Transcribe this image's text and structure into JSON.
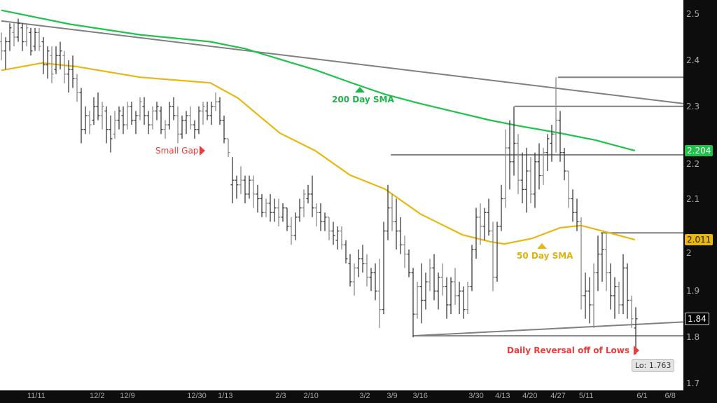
{
  "chart_data": {
    "type": "ohlc",
    "title": "",
    "xlabel": "",
    "ylabel": "",
    "ylim": [
      1.7,
      2.5
    ],
    "grid": false,
    "y_ticks": [
      "2.5",
      "2.4",
      "2.3",
      "2.2",
      "2.1",
      "2",
      "1.9",
      "1.8",
      "1.7"
    ],
    "y_tick_values": [
      2.5,
      2.4,
      2.3,
      2.2,
      2.1,
      2.0,
      1.9,
      1.8,
      1.7
    ],
    "x_ticks": [
      {
        "label": "11/11",
        "bar": 8.3
      },
      {
        "label": "12/2",
        "bar": 22.8
      },
      {
        "label": "12/9",
        "bar": 30
      },
      {
        "label": "12/30",
        "bar": 46.5
      },
      {
        "label": "1/13",
        "bar": 53.3
      },
      {
        "label": "2/3",
        "bar": 66.5
      },
      {
        "label": "2/10",
        "bar": 73.7
      },
      {
        "label": "3/2",
        "bar": 86.5
      },
      {
        "label": "3/9",
        "bar": 93
      },
      {
        "label": "3/16",
        "bar": 99.7
      },
      {
        "label": "3/30",
        "bar": 113
      },
      {
        "label": "4/13",
        "bar": 119.3
      },
      {
        "label": "4/20",
        "bar": 125.8
      },
      {
        "label": "4/27",
        "bar": 132.5
      },
      {
        "label": "5/11",
        "bar": 139.2
      },
      {
        "label": "6/1",
        "bar": 152.5
      },
      {
        "label": "6/8",
        "bar": 159.2
      }
    ],
    "ohlc": [
      [
        2.44,
        2.46,
        2.4,
        2.42
      ],
      [
        2.42,
        2.45,
        2.38,
        2.44
      ],
      [
        2.44,
        2.48,
        2.42,
        2.47
      ],
      [
        2.46,
        2.48,
        2.43,
        2.45
      ],
      [
        2.45,
        2.49,
        2.44,
        2.48
      ],
      [
        2.47,
        2.48,
        2.42,
        2.44
      ],
      [
        2.44,
        2.48,
        2.43,
        2.47
      ],
      [
        2.46,
        2.47,
        2.41,
        2.42
      ],
      [
        2.43,
        2.47,
        2.42,
        2.46
      ],
      [
        2.46,
        2.47,
        2.42,
        2.43
      ],
      [
        2.44,
        2.45,
        2.37,
        2.39
      ],
      [
        2.39,
        2.43,
        2.36,
        2.42
      ],
      [
        2.41,
        2.43,
        2.35,
        2.37
      ],
      [
        2.38,
        2.43,
        2.37,
        2.41
      ],
      [
        2.41,
        2.44,
        2.38,
        2.42
      ],
      [
        2.41,
        2.42,
        2.35,
        2.37
      ],
      [
        2.37,
        2.4,
        2.33,
        2.38
      ],
      [
        2.38,
        2.41,
        2.34,
        2.36
      ],
      [
        2.36,
        2.37,
        2.31,
        2.33
      ],
      [
        2.33,
        2.34,
        2.22,
        2.25
      ],
      [
        2.25,
        2.3,
        2.24,
        2.28
      ],
      [
        2.28,
        2.29,
        2.24,
        2.26
      ],
      [
        2.27,
        2.32,
        2.26,
        2.3
      ],
      [
        2.3,
        2.33,
        2.27,
        2.28
      ],
      [
        2.28,
        2.31,
        2.25,
        2.3
      ],
      [
        2.29,
        2.3,
        2.22,
        2.25
      ],
      [
        2.25,
        2.28,
        2.2,
        2.23
      ],
      [
        2.24,
        2.29,
        2.23,
        2.27
      ],
      [
        2.27,
        2.3,
        2.25,
        2.29
      ],
      [
        2.28,
        2.3,
        2.24,
        2.26
      ],
      [
        2.26,
        2.31,
        2.25,
        2.3
      ],
      [
        2.3,
        2.31,
        2.26,
        2.27
      ],
      [
        2.27,
        2.29,
        2.24,
        2.28
      ],
      [
        2.28,
        2.32,
        2.27,
        2.31
      ],
      [
        2.3,
        2.32,
        2.26,
        2.28
      ],
      [
        2.28,
        2.29,
        2.24,
        2.26
      ],
      [
        2.26,
        2.3,
        2.25,
        2.29
      ],
      [
        2.29,
        2.31,
        2.27,
        2.3
      ],
      [
        2.29,
        2.3,
        2.24,
        2.25
      ],
      [
        2.25,
        2.27,
        2.23,
        2.26
      ],
      [
        2.26,
        2.31,
        2.25,
        2.3
      ],
      [
        2.3,
        2.32,
        2.27,
        2.28
      ],
      [
        2.28,
        2.3,
        2.22,
        2.24
      ],
      [
        2.24,
        2.28,
        2.23,
        2.27
      ],
      [
        2.27,
        2.29,
        2.24,
        2.28
      ],
      [
        2.28,
        2.3,
        2.25,
        2.26
      ],
      [
        2.26,
        2.27,
        2.23,
        2.25
      ],
      [
        2.25,
        2.3,
        2.24,
        2.29
      ],
      [
        2.29,
        2.31,
        2.26,
        2.3
      ],
      [
        2.29,
        2.31,
        2.27,
        2.28
      ],
      [
        2.28,
        2.31,
        2.26,
        2.3
      ],
      [
        2.3,
        2.33,
        2.29,
        2.31
      ],
      [
        2.31,
        2.32,
        2.26,
        2.27
      ],
      [
        2.27,
        2.28,
        2.22,
        2.23
      ],
      [
        2.23,
        2.23,
        2.19,
        2.2
      ],
      [
        2.13,
        2.19,
        2.09,
        2.14
      ],
      [
        2.14,
        2.15,
        2.1,
        2.13
      ],
      [
        2.13,
        2.17,
        2.11,
        2.14
      ],
      [
        2.14,
        2.15,
        2.09,
        2.11
      ],
      [
        2.11,
        2.15,
        2.1,
        2.14
      ],
      [
        2.14,
        2.15,
        2.08,
        2.11
      ],
      [
        2.11,
        2.13,
        2.07,
        2.1
      ],
      [
        2.1,
        2.11,
        2.06,
        2.07
      ],
      [
        2.07,
        2.1,
        2.06,
        2.09
      ],
      [
        2.09,
        2.11,
        2.05,
        2.07
      ],
      [
        2.07,
        2.1,
        2.05,
        2.08
      ],
      [
        2.08,
        2.1,
        2.04,
        2.06
      ],
      [
        2.06,
        2.09,
        2.05,
        2.08
      ],
      [
        2.08,
        2.08,
        2.03,
        2.04
      ],
      [
        2.04,
        2.06,
        2.0,
        2.02
      ],
      [
        2.02,
        2.07,
        2.01,
        2.06
      ],
      [
        2.06,
        2.1,
        2.05,
        2.08
      ],
      [
        2.08,
        2.12,
        2.06,
        2.11
      ],
      [
        2.1,
        2.13,
        2.09,
        2.11
      ],
      [
        2.11,
        2.15,
        2.06,
        2.08
      ],
      [
        2.08,
        2.09,
        2.04,
        2.07
      ],
      [
        2.07,
        2.09,
        2.03,
        2.05
      ],
      [
        2.05,
        2.07,
        2.03,
        2.06
      ],
      [
        2.06,
        2.06,
        2.01,
        2.03
      ],
      [
        2.03,
        2.05,
        2.0,
        2.02
      ],
      [
        2.01,
        2.04,
        1.99,
        2.03
      ],
      [
        2.03,
        2.04,
        1.99,
        2.0
      ],
      [
        2.0,
        2.01,
        1.96,
        1.97
      ],
      [
        1.96,
        1.98,
        1.91,
        1.92
      ],
      [
        1.92,
        1.96,
        1.89,
        1.95
      ],
      [
        1.95,
        1.99,
        1.93,
        1.97
      ],
      [
        1.97,
        2.0,
        1.94,
        1.96
      ],
      [
        1.96,
        1.98,
        1.91,
        1.93
      ],
      [
        1.93,
        1.95,
        1.9,
        1.94
      ],
      [
        1.94,
        1.96,
        1.88,
        1.9
      ],
      [
        1.9,
        1.97,
        1.82,
        1.86
      ],
      [
        1.86,
        2.05,
        1.85,
        2.03
      ],
      [
        2.03,
        2.13,
        2.01,
        2.08
      ],
      [
        2.08,
        2.11,
        2.03,
        2.05
      ],
      [
        2.05,
        2.1,
        1.99,
        2.03
      ],
      [
        2.03,
        2.06,
        1.98,
        2.0
      ],
      [
        2.0,
        2.02,
        1.95,
        1.98
      ],
      [
        1.98,
        1.99,
        1.93,
        1.94
      ],
      [
        1.94,
        1.95,
        1.8,
        1.85
      ],
      [
        1.85,
        1.92,
        1.84,
        1.91
      ],
      [
        1.91,
        1.96,
        1.83,
        1.88
      ],
      [
        1.88,
        1.94,
        1.86,
        1.92
      ],
      [
        1.92,
        1.97,
        1.9,
        1.95
      ],
      [
        1.95,
        1.98,
        1.88,
        1.9
      ],
      [
        1.9,
        1.94,
        1.86,
        1.93
      ],
      [
        1.93,
        1.96,
        1.89,
        1.91
      ],
      [
        1.91,
        1.93,
        1.84,
        1.87
      ],
      [
        1.87,
        1.93,
        1.85,
        1.92
      ],
      [
        1.92,
        1.95,
        1.87,
        1.89
      ],
      [
        1.89,
        1.92,
        1.85,
        1.9
      ],
      [
        1.9,
        1.91,
        1.84,
        1.86
      ],
      [
        1.86,
        1.92,
        1.85,
        1.91
      ],
      [
        1.91,
        2.0,
        1.9,
        1.99
      ],
      [
        1.99,
        2.08,
        1.97,
        2.06
      ],
      [
        2.06,
        2.09,
        2.0,
        2.04
      ],
      [
        2.04,
        2.08,
        2.01,
        2.07
      ],
      [
        2.07,
        2.1,
        2.02,
        2.03
      ],
      [
        2.03,
        2.05,
        1.9,
        1.93
      ],
      [
        1.93,
        2.05,
        1.92,
        2.04
      ],
      [
        2.04,
        2.13,
        2.03,
        2.1
      ],
      [
        2.1,
        2.25,
        2.08,
        2.21
      ],
      [
        2.21,
        2.27,
        2.12,
        2.18
      ],
      [
        2.18,
        2.3,
        2.15,
        2.22
      ],
      [
        2.22,
        2.24,
        2.11,
        2.14
      ],
      [
        2.14,
        2.2,
        2.09,
        2.12
      ],
      [
        2.12,
        2.21,
        2.07,
        2.16
      ],
      [
        2.16,
        2.19,
        2.09,
        2.11
      ],
      [
        2.11,
        2.2,
        2.08,
        2.18
      ],
      [
        2.18,
        2.22,
        2.12,
        2.15
      ],
      [
        2.15,
        2.21,
        2.13,
        2.2
      ],
      [
        2.2,
        2.24,
        2.16,
        2.23
      ],
      [
        2.22,
        2.26,
        2.18,
        2.24
      ],
      [
        2.24,
        2.363,
        2.2,
        2.27
      ],
      [
        2.27,
        2.29,
        2.18,
        2.2
      ],
      [
        2.2,
        2.21,
        2.14,
        2.16
      ],
      [
        2.16,
        2.16,
        2.08,
        2.1
      ],
      [
        2.1,
        2.12,
        2.05,
        2.07
      ],
      [
        2.07,
        2.1,
        2.03,
        2.05
      ],
      [
        2.05,
        2.06,
        1.86,
        1.89
      ],
      [
        1.89,
        1.94,
        1.84,
        1.9
      ],
      [
        1.9,
        1.93,
        1.83,
        1.87
      ],
      [
        1.87,
        1.96,
        1.82,
        1.94
      ],
      [
        1.94,
        2.02,
        1.9,
        1.98
      ],
      [
        1.98,
        2.026,
        1.92,
        1.99
      ],
      [
        1.99,
        2.026,
        1.9,
        1.94
      ],
      [
        1.94,
        1.96,
        1.86,
        1.89
      ],
      [
        1.89,
        1.93,
        1.84,
        1.91
      ],
      [
        1.91,
        1.92,
        1.85,
        1.87
      ],
      [
        1.87,
        1.98,
        1.85,
        1.95
      ],
      [
        1.95,
        1.96,
        1.84,
        1.88
      ],
      [
        1.88,
        1.89,
        1.82,
        1.84
      ],
      [
        1.82,
        1.865,
        1.763,
        1.84
      ]
    ],
    "sma200": {
      "name": "200 Day SMA",
      "color": "#1fc24a",
      "points": [
        [
          0,
          2.508
        ],
        [
          16.3,
          2.478
        ],
        [
          33,
          2.455
        ],
        [
          49.7,
          2.44
        ],
        [
          58,
          2.425
        ],
        [
          66.3,
          2.402
        ],
        [
          74.7,
          2.379
        ],
        [
          83,
          2.352
        ],
        [
          91.3,
          2.326
        ],
        [
          99.7,
          2.306
        ],
        [
          108,
          2.288
        ],
        [
          116.3,
          2.27
        ],
        [
          123,
          2.258
        ],
        [
          133,
          2.242
        ],
        [
          141.3,
          2.227
        ],
        [
          150.8,
          2.204
        ]
      ]
    },
    "sma50": {
      "name": "50 Day SMA",
      "color": "#e8b810",
      "points": [
        [
          0,
          2.378
        ],
        [
          9.7,
          2.394
        ],
        [
          18,
          2.386
        ],
        [
          33,
          2.363
        ],
        [
          49.7,
          2.351
        ],
        [
          56.3,
          2.318
        ],
        [
          66.3,
          2.242
        ],
        [
          74.7,
          2.204
        ],
        [
          83,
          2.151
        ],
        [
          91.3,
          2.121
        ],
        [
          99.7,
          2.067
        ],
        [
          109.7,
          2.022
        ],
        [
          116.3,
          2.007
        ],
        [
          119.7,
          2.002
        ],
        [
          126.3,
          2.014
        ],
        [
          133,
          2.037
        ],
        [
          138,
          2.042
        ],
        [
          144.7,
          2.026
        ],
        [
          150.8,
          2.011
        ]
      ]
    },
    "horizontal_levels": [
      {
        "price": 2.363,
        "from_bar": 132.5
      },
      {
        "price": 2.3,
        "from_bar": 122.2
      },
      {
        "price": 2.195,
        "from_bar": 92.7
      },
      {
        "price": 2.026,
        "from_bar": 142.7
      },
      {
        "price": 1.803,
        "from_bar": 98
      }
    ],
    "trendlines": [
      {
        "from": [
          0,
          2.485
        ],
        "to": [
          162.3,
          2.306
        ]
      },
      {
        "from": [
          98,
          1.803
        ],
        "to": [
          162.3,
          1.833
        ]
      }
    ],
    "price_tags": [
      {
        "text": "2.204",
        "price": 2.204,
        "bg": "#1fc24a",
        "fg": "#ffffff"
      },
      {
        "text": "2.011",
        "price": 2.011,
        "bg": "#e8b810",
        "fg": "#222222"
      },
      {
        "text": "1.84",
        "price": 1.84,
        "bg": "#000000",
        "fg": "#ffffff"
      }
    ],
    "annotations": {
      "sma200_label": "200 Day SMA",
      "sma50_label": "50 Day SMA",
      "small_gap": "Small Gap",
      "daily_reversal": "Daily Reversal off of Lows",
      "low_tooltip": "Lo: 1.763"
    },
    "colors": {
      "bar": "#3a3a3a",
      "level_line": "#808080",
      "annotation_red": "#ef3b3b",
      "axis_bg": "#0d0d0d",
      "axis_text": "#a8a8a8"
    }
  }
}
